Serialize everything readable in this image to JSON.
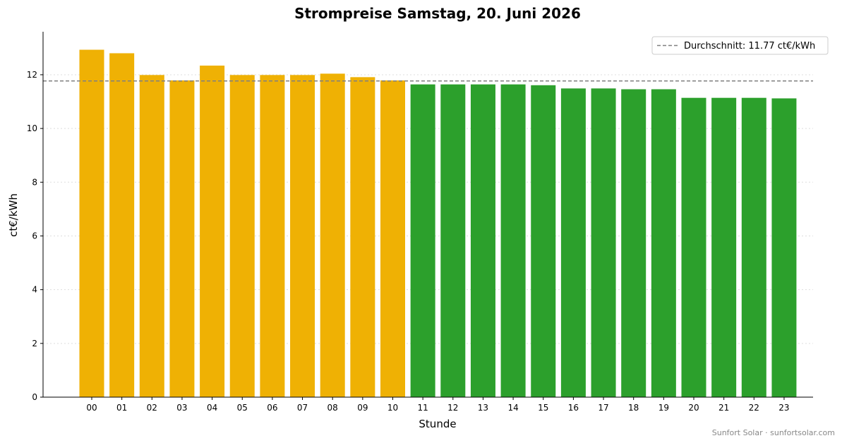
{
  "chart_data": {
    "type": "bar",
    "title": "Strompreise Samstag, 20. Juni 2026",
    "xlabel": "Stunde",
    "ylabel": "ct€/kWh",
    "ylim": [
      0,
      13.6
    ],
    "yticks": [
      0,
      2,
      4,
      6,
      8,
      10,
      12
    ],
    "grid": "y-dotted",
    "categories": [
      "00",
      "01",
      "02",
      "03",
      "04",
      "05",
      "06",
      "07",
      "08",
      "09",
      "10",
      "11",
      "12",
      "13",
      "14",
      "15",
      "16",
      "17",
      "18",
      "19",
      "20",
      "21",
      "22",
      "23"
    ],
    "values": [
      12.93,
      12.8,
      11.99,
      11.79,
      12.34,
      11.99,
      11.99,
      11.99,
      12.04,
      11.91,
      11.79,
      11.64,
      11.64,
      11.64,
      11.64,
      11.61,
      11.49,
      11.49,
      11.46,
      11.46,
      11.14,
      11.14,
      11.14,
      11.12
    ],
    "colors": {
      "above_average": "#efb104",
      "below_average": "#2ca02c",
      "average_line": "#808080"
    },
    "average": {
      "value": 11.77,
      "label": "Durchschnitt: 11.77 ct€/kWh"
    },
    "legend_position": "top-right"
  },
  "footer": {
    "text": "Sunfort Solar · sunfortsolar.com"
  }
}
